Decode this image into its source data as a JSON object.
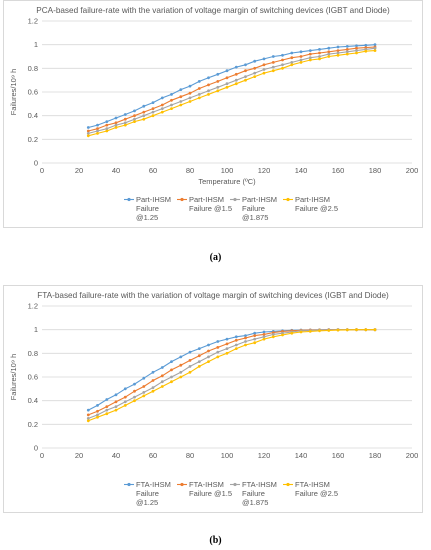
{
  "captions": [
    "(a)",
    "(b)"
  ],
  "chart_data": [
    {
      "type": "line",
      "title": "PCA-based failure-rate with the variation of voltage margin of switching devices (IGBT and Diode)",
      "xlabel": "Temperature (ºC)",
      "ylabel": "Failures/10⁹ h",
      "xlim": [
        0,
        200
      ],
      "ylim": [
        0,
        1.2
      ],
      "xticks": [
        "0",
        "20",
        "40",
        "60",
        "80",
        "100",
        "120",
        "140",
        "160",
        "180",
        "200"
      ],
      "yticks": [
        "0",
        "0.2",
        "0.4",
        "0.6",
        "0.8",
        "1",
        "1.2"
      ],
      "grid": "horizontal",
      "legend": "bottom",
      "x": [
        25,
        30,
        35,
        40,
        45,
        50,
        55,
        60,
        65,
        70,
        75,
        80,
        85,
        90,
        95,
        100,
        105,
        110,
        115,
        120,
        125,
        130,
        135,
        140,
        145,
        150,
        155,
        160,
        165,
        170,
        175,
        180
      ],
      "series": [
        {
          "name": "Part-IHSM Failure @1.25",
          "color": "#5b9bd5",
          "values": [
            0.3,
            0.32,
            0.35,
            0.38,
            0.41,
            0.44,
            0.48,
            0.51,
            0.55,
            0.58,
            0.62,
            0.65,
            0.69,
            0.72,
            0.75,
            0.78,
            0.81,
            0.83,
            0.86,
            0.88,
            0.9,
            0.91,
            0.93,
            0.94,
            0.95,
            0.96,
            0.97,
            0.98,
            0.985,
            0.99,
            0.995,
            1.0
          ]
        },
        {
          "name": "Part-IHSM Failure @1.5",
          "color": "#ed7d31",
          "values": [
            0.27,
            0.29,
            0.32,
            0.34,
            0.37,
            0.4,
            0.43,
            0.46,
            0.49,
            0.53,
            0.56,
            0.59,
            0.63,
            0.66,
            0.69,
            0.72,
            0.75,
            0.78,
            0.8,
            0.83,
            0.85,
            0.87,
            0.89,
            0.9,
            0.92,
            0.93,
            0.94,
            0.95,
            0.96,
            0.97,
            0.975,
            0.98
          ]
        },
        {
          "name": "Part-IHSM Failure @1.875",
          "color": "#a5a5a5",
          "values": [
            0.25,
            0.27,
            0.29,
            0.32,
            0.34,
            0.37,
            0.4,
            0.43,
            0.46,
            0.49,
            0.52,
            0.55,
            0.58,
            0.61,
            0.64,
            0.67,
            0.7,
            0.73,
            0.76,
            0.79,
            0.81,
            0.83,
            0.85,
            0.87,
            0.89,
            0.9,
            0.92,
            0.93,
            0.94,
            0.95,
            0.96,
            0.97
          ]
        },
        {
          "name": "Part-IHSM Failure @2.5",
          "color": "#ffc000",
          "values": [
            0.23,
            0.25,
            0.27,
            0.3,
            0.32,
            0.35,
            0.37,
            0.4,
            0.43,
            0.46,
            0.49,
            0.52,
            0.55,
            0.58,
            0.61,
            0.64,
            0.67,
            0.7,
            0.73,
            0.76,
            0.78,
            0.8,
            0.83,
            0.85,
            0.87,
            0.88,
            0.9,
            0.91,
            0.92,
            0.93,
            0.945,
            0.95
          ]
        }
      ]
    },
    {
      "type": "line",
      "title": "FTA-based failure-rate with the variation of voltage margin of switching devices (IGBT and Diode)",
      "xlabel": "",
      "ylabel": "Failures/10⁹ h",
      "xlim": [
        0,
        200
      ],
      "ylim": [
        0,
        1.2
      ],
      "xticks": [
        "0",
        "20",
        "40",
        "60",
        "80",
        "100",
        "120",
        "140",
        "160",
        "180",
        "200"
      ],
      "yticks": [
        "0",
        "0.2",
        "0.4",
        "0.6",
        "0.8",
        "1",
        "1.2"
      ],
      "grid": "horizontal",
      "legend": "bottom",
      "x": [
        25,
        30,
        35,
        40,
        45,
        50,
        55,
        60,
        65,
        70,
        75,
        80,
        85,
        90,
        95,
        100,
        105,
        110,
        115,
        120,
        125,
        130,
        135,
        140,
        145,
        150,
        155,
        160,
        165,
        170,
        175,
        180
      ],
      "series": [
        {
          "name": "FTA-IHSM Failure @1.25",
          "color": "#5b9bd5",
          "values": [
            0.32,
            0.36,
            0.41,
            0.45,
            0.5,
            0.54,
            0.59,
            0.64,
            0.68,
            0.73,
            0.77,
            0.81,
            0.84,
            0.87,
            0.9,
            0.92,
            0.94,
            0.95,
            0.97,
            0.98,
            0.985,
            0.99,
            0.995,
            0.997,
            0.998,
            0.999,
            1.0,
            1.0,
            1.0,
            1.0,
            1.0,
            1.0
          ]
        },
        {
          "name": "FTA-IHSM Failure @1.5",
          "color": "#ed7d31",
          "values": [
            0.28,
            0.31,
            0.35,
            0.39,
            0.43,
            0.48,
            0.52,
            0.57,
            0.61,
            0.66,
            0.7,
            0.74,
            0.78,
            0.82,
            0.85,
            0.88,
            0.91,
            0.93,
            0.95,
            0.96,
            0.975,
            0.985,
            0.99,
            0.995,
            0.997,
            0.998,
            1.0,
            1.0,
            1.0,
            1.0,
            1.0,
            1.0
          ]
        },
        {
          "name": "FTA-IHSM Failure @1.875",
          "color": "#a5a5a5",
          "values": [
            0.25,
            0.28,
            0.32,
            0.35,
            0.39,
            0.43,
            0.47,
            0.51,
            0.56,
            0.6,
            0.64,
            0.69,
            0.73,
            0.77,
            0.81,
            0.84,
            0.87,
            0.9,
            0.92,
            0.94,
            0.96,
            0.97,
            0.98,
            0.99,
            0.993,
            0.996,
            0.998,
            1.0,
            1.0,
            1.0,
            1.0,
            1.0
          ]
        },
        {
          "name": "FTA-IHSM Failure @2.5",
          "color": "#ffc000",
          "values": [
            0.23,
            0.26,
            0.29,
            0.32,
            0.36,
            0.4,
            0.44,
            0.48,
            0.52,
            0.56,
            0.6,
            0.64,
            0.69,
            0.73,
            0.77,
            0.8,
            0.84,
            0.87,
            0.89,
            0.92,
            0.94,
            0.955,
            0.97,
            0.98,
            0.985,
            0.99,
            0.993,
            0.996,
            0.998,
            1.0,
            1.0,
            1.0
          ]
        }
      ]
    }
  ]
}
